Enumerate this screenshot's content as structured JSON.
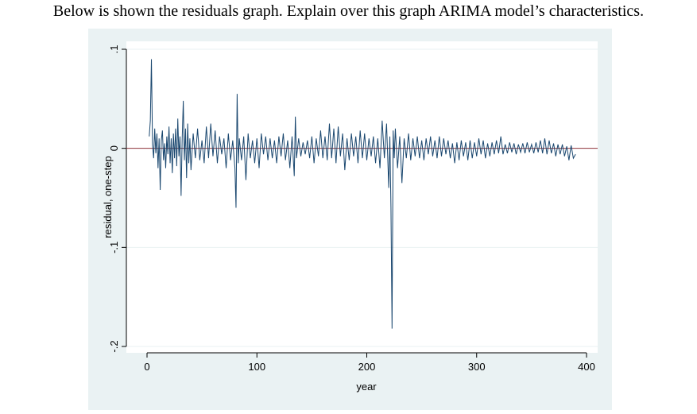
{
  "page": {
    "question": "Below is shown the residuals graph. Explain over this graph ARIMA model’s characteristics."
  },
  "colors": {
    "panel_background": "#eaf2f3",
    "plot_background": "#ffffff",
    "series_line": "#1a476f",
    "zero_line": "#90353b",
    "gridline": "#eaf2f3"
  },
  "chart_data": {
    "type": "line",
    "title": "",
    "xlabel": "year",
    "ylabel": "residual, one-step",
    "xlim": [
      0,
      400
    ],
    "ylim": [
      -0.2,
      0.1
    ],
    "x_ticks": [
      0,
      100,
      200,
      300,
      400
    ],
    "x_tick_labels": [
      "0",
      "100",
      "200",
      "300",
      "400"
    ],
    "y_ticks": [
      -0.2,
      -0.1,
      0,
      0.1
    ],
    "y_tick_labels": [
      "-.2",
      "-.1",
      "0",
      ".1"
    ],
    "grid": true,
    "reference_line": {
      "y": 0
    },
    "series": [
      {
        "values": [
          {
            "x": 2,
            "y": 0.012
          },
          {
            "x": 3,
            "y": 0.028
          },
          {
            "x": 4,
            "y": 0.09
          },
          {
            "x": 5,
            "y": 0.004
          },
          {
            "x": 6,
            "y": -0.01
          },
          {
            "x": 7,
            "y": 0.02
          },
          {
            "x": 8,
            "y": -0.005
          },
          {
            "x": 9,
            "y": 0.015
          },
          {
            "x": 10,
            "y": -0.02
          },
          {
            "x": 11,
            "y": 0.01
          },
          {
            "x": 12,
            "y": -0.042
          },
          {
            "x": 13,
            "y": 0.008
          },
          {
            "x": 14,
            "y": 0.018
          },
          {
            "x": 15,
            "y": -0.012
          },
          {
            "x": 16,
            "y": 0.005
          },
          {
            "x": 17,
            "y": -0.02
          },
          {
            "x": 18,
            "y": 0.012
          },
          {
            "x": 19,
            "y": -0.006
          },
          {
            "x": 20,
            "y": 0.022
          },
          {
            "x": 21,
            "y": -0.015
          },
          {
            "x": 22,
            "y": 0.01
          },
          {
            "x": 23,
            "y": -0.025
          },
          {
            "x": 24,
            "y": 0.015
          },
          {
            "x": 25,
            "y": -0.01
          },
          {
            "x": 26,
            "y": 0.02
          },
          {
            "x": 27,
            "y": -0.018
          },
          {
            "x": 28,
            "y": 0.03
          },
          {
            "x": 29,
            "y": -0.008
          },
          {
            "x": 30,
            "y": 0.012
          },
          {
            "x": 31,
            "y": -0.048
          },
          {
            "x": 32,
            "y": 0.01
          },
          {
            "x": 33,
            "y": 0.048
          },
          {
            "x": 34,
            "y": -0.012
          },
          {
            "x": 35,
            "y": 0.02
          },
          {
            "x": 36,
            "y": -0.03
          },
          {
            "x": 37,
            "y": 0.025
          },
          {
            "x": 38,
            "y": -0.015
          },
          {
            "x": 39,
            "y": 0.01
          },
          {
            "x": 40,
            "y": -0.022
          },
          {
            "x": 42,
            "y": 0.015
          },
          {
            "x": 44,
            "y": -0.01
          },
          {
            "x": 46,
            "y": 0.02
          },
          {
            "x": 48,
            "y": -0.012
          },
          {
            "x": 50,
            "y": 0.008
          },
          {
            "x": 52,
            "y": -0.015
          },
          {
            "x": 54,
            "y": 0.022
          },
          {
            "x": 56,
            "y": -0.01
          },
          {
            "x": 58,
            "y": 0.025
          },
          {
            "x": 60,
            "y": -0.008
          },
          {
            "x": 62,
            "y": 0.018
          },
          {
            "x": 64,
            "y": -0.015
          },
          {
            "x": 66,
            "y": 0.012
          },
          {
            "x": 68,
            "y": -0.006
          },
          {
            "x": 70,
            "y": 0.01
          },
          {
            "x": 72,
            "y": -0.02
          },
          {
            "x": 74,
            "y": 0.015
          },
          {
            "x": 76,
            "y": -0.012
          },
          {
            "x": 78,
            "y": 0.008
          },
          {
            "x": 80,
            "y": -0.02
          },
          {
            "x": 81,
            "y": -0.06
          },
          {
            "x": 82,
            "y": 0.055
          },
          {
            "x": 83,
            "y": -0.015
          },
          {
            "x": 84,
            "y": 0.01
          },
          {
            "x": 86,
            "y": -0.012
          },
          {
            "x": 88,
            "y": 0.012
          },
          {
            "x": 90,
            "y": -0.032
          },
          {
            "x": 92,
            "y": 0.015
          },
          {
            "x": 94,
            "y": -0.01
          },
          {
            "x": 96,
            "y": 0.008
          },
          {
            "x": 98,
            "y": -0.015
          },
          {
            "x": 100,
            "y": 0.01
          },
          {
            "x": 102,
            "y": -0.02
          },
          {
            "x": 104,
            "y": 0.015
          },
          {
            "x": 106,
            "y": -0.006
          },
          {
            "x": 108,
            "y": 0.012
          },
          {
            "x": 110,
            "y": -0.012
          },
          {
            "x": 112,
            "y": 0.01
          },
          {
            "x": 114,
            "y": -0.01
          },
          {
            "x": 116,
            "y": 0.008
          },
          {
            "x": 118,
            "y": -0.015
          },
          {
            "x": 120,
            "y": 0.012
          },
          {
            "x": 122,
            "y": -0.008
          },
          {
            "x": 124,
            "y": 0.015
          },
          {
            "x": 126,
            "y": -0.012
          },
          {
            "x": 128,
            "y": 0.008
          },
          {
            "x": 130,
            "y": -0.02
          },
          {
            "x": 132,
            "y": 0.012
          },
          {
            "x": 134,
            "y": -0.028
          },
          {
            "x": 135,
            "y": 0.032
          },
          {
            "x": 136,
            "y": -0.01
          },
          {
            "x": 138,
            "y": 0.01
          },
          {
            "x": 140,
            "y": -0.008
          },
          {
            "x": 142,
            "y": 0.006
          },
          {
            "x": 144,
            "y": -0.006
          },
          {
            "x": 146,
            "y": 0.008
          },
          {
            "x": 148,
            "y": -0.01
          },
          {
            "x": 150,
            "y": 0.012
          },
          {
            "x": 152,
            "y": -0.015
          },
          {
            "x": 154,
            "y": 0.01
          },
          {
            "x": 156,
            "y": -0.008
          },
          {
            "x": 158,
            "y": 0.018
          },
          {
            "x": 160,
            "y": -0.01
          },
          {
            "x": 162,
            "y": 0.012
          },
          {
            "x": 164,
            "y": -0.012
          },
          {
            "x": 166,
            "y": 0.025
          },
          {
            "x": 168,
            "y": -0.01
          },
          {
            "x": 170,
            "y": 0.02
          },
          {
            "x": 172,
            "y": -0.015
          },
          {
            "x": 174,
            "y": 0.022
          },
          {
            "x": 176,
            "y": -0.008
          },
          {
            "x": 178,
            "y": 0.015
          },
          {
            "x": 180,
            "y": -0.022
          },
          {
            "x": 182,
            "y": 0.01
          },
          {
            "x": 184,
            "y": -0.012
          },
          {
            "x": 186,
            "y": 0.015
          },
          {
            "x": 188,
            "y": -0.008
          },
          {
            "x": 190,
            "y": 0.012
          },
          {
            "x": 192,
            "y": -0.015
          },
          {
            "x": 194,
            "y": 0.018
          },
          {
            "x": 196,
            "y": -0.01
          },
          {
            "x": 198,
            "y": 0.015
          },
          {
            "x": 200,
            "y": -0.012
          },
          {
            "x": 202,
            "y": 0.01
          },
          {
            "x": 204,
            "y": -0.008
          },
          {
            "x": 206,
            "y": 0.012
          },
          {
            "x": 208,
            "y": -0.015
          },
          {
            "x": 210,
            "y": 0.01
          },
          {
            "x": 212,
            "y": -0.02
          },
          {
            "x": 214,
            "y": 0.028
          },
          {
            "x": 216,
            "y": -0.01
          },
          {
            "x": 218,
            "y": 0.025
          },
          {
            "x": 220,
            "y": -0.04
          },
          {
            "x": 221,
            "y": 0.012
          },
          {
            "x": 222,
            "y": -0.06
          },
          {
            "x": 223,
            "y": -0.182
          },
          {
            "x": 224,
            "y": 0.018
          },
          {
            "x": 225,
            "y": -0.01
          },
          {
            "x": 226,
            "y": 0.02
          },
          {
            "x": 228,
            "y": -0.02
          },
          {
            "x": 230,
            "y": 0.012
          },
          {
            "x": 232,
            "y": -0.035
          },
          {
            "x": 234,
            "y": 0.01
          },
          {
            "x": 236,
            "y": -0.01
          },
          {
            "x": 238,
            "y": 0.015
          },
          {
            "x": 240,
            "y": -0.012
          },
          {
            "x": 242,
            "y": 0.01
          },
          {
            "x": 244,
            "y": -0.008
          },
          {
            "x": 246,
            "y": 0.012
          },
          {
            "x": 248,
            "y": -0.01
          },
          {
            "x": 250,
            "y": 0.008
          },
          {
            "x": 252,
            "y": -0.012
          },
          {
            "x": 254,
            "y": 0.01
          },
          {
            "x": 256,
            "y": -0.006
          },
          {
            "x": 258,
            "y": 0.012
          },
          {
            "x": 260,
            "y": -0.008
          },
          {
            "x": 262,
            "y": 0.008
          },
          {
            "x": 264,
            "y": -0.01
          },
          {
            "x": 266,
            "y": 0.012
          },
          {
            "x": 268,
            "y": -0.008
          },
          {
            "x": 270,
            "y": 0.01
          },
          {
            "x": 272,
            "y": -0.006
          },
          {
            "x": 274,
            "y": 0.008
          },
          {
            "x": 276,
            "y": -0.01
          },
          {
            "x": 278,
            "y": 0.005
          },
          {
            "x": 280,
            "y": -0.015
          },
          {
            "x": 282,
            "y": 0.006
          },
          {
            "x": 284,
            "y": -0.012
          },
          {
            "x": 286,
            "y": 0.008
          },
          {
            "x": 288,
            "y": -0.008
          },
          {
            "x": 290,
            "y": 0.006
          },
          {
            "x": 292,
            "y": -0.012
          },
          {
            "x": 294,
            "y": 0.008
          },
          {
            "x": 296,
            "y": -0.01
          },
          {
            "x": 298,
            "y": 0.006
          },
          {
            "x": 300,
            "y": -0.008
          },
          {
            "x": 302,
            "y": 0.01
          },
          {
            "x": 304,
            "y": -0.006
          },
          {
            "x": 306,
            "y": 0.008
          },
          {
            "x": 308,
            "y": -0.01
          },
          {
            "x": 310,
            "y": 0.005
          },
          {
            "x": 312,
            "y": -0.008
          },
          {
            "x": 314,
            "y": 0.006
          },
          {
            "x": 316,
            "y": -0.006
          },
          {
            "x": 318,
            "y": 0.008
          },
          {
            "x": 320,
            "y": -0.005
          },
          {
            "x": 322,
            "y": 0.012
          },
          {
            "x": 324,
            "y": -0.006
          },
          {
            "x": 326,
            "y": 0.004
          },
          {
            "x": 328,
            "y": -0.005
          },
          {
            "x": 330,
            "y": 0.006
          },
          {
            "x": 332,
            "y": -0.004
          },
          {
            "x": 334,
            "y": 0.005
          },
          {
            "x": 336,
            "y": -0.006
          },
          {
            "x": 338,
            "y": 0.004
          },
          {
            "x": 340,
            "y": -0.004
          },
          {
            "x": 342,
            "y": 0.005
          },
          {
            "x": 344,
            "y": -0.005
          },
          {
            "x": 346,
            "y": 0.006
          },
          {
            "x": 348,
            "y": -0.004
          },
          {
            "x": 350,
            "y": 0.004
          },
          {
            "x": 352,
            "y": -0.005
          },
          {
            "x": 354,
            "y": 0.006
          },
          {
            "x": 356,
            "y": -0.004
          },
          {
            "x": 358,
            "y": 0.008
          },
          {
            "x": 360,
            "y": -0.005
          },
          {
            "x": 362,
            "y": 0.01
          },
          {
            "x": 364,
            "y": -0.006
          },
          {
            "x": 366,
            "y": 0.008
          },
          {
            "x": 368,
            "y": -0.005
          },
          {
            "x": 370,
            "y": 0.005
          },
          {
            "x": 372,
            "y": -0.008
          },
          {
            "x": 374,
            "y": 0.004
          },
          {
            "x": 376,
            "y": -0.006
          },
          {
            "x": 378,
            "y": 0.004
          },
          {
            "x": 380,
            "y": -0.008
          },
          {
            "x": 382,
            "y": 0.002
          },
          {
            "x": 384,
            "y": -0.012
          },
          {
            "x": 386,
            "y": 0.003
          },
          {
            "x": 388,
            "y": -0.01
          },
          {
            "x": 390,
            "y": -0.006
          }
        ]
      }
    ]
  }
}
